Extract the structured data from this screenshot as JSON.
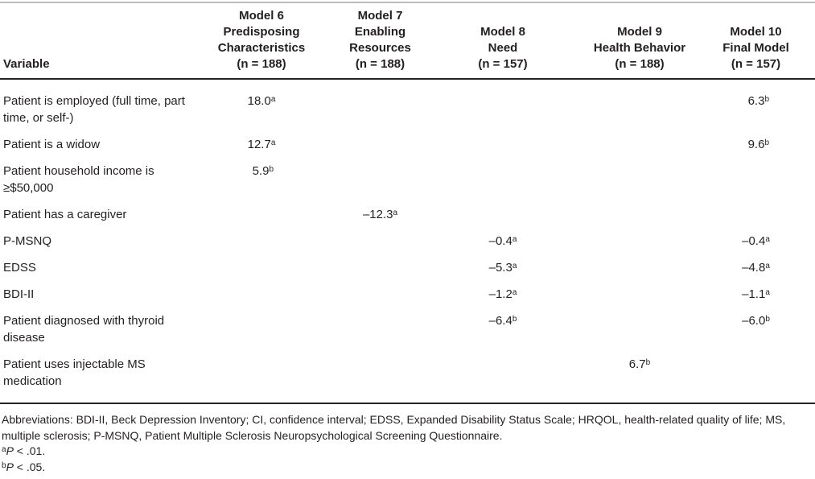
{
  "table": {
    "header": {
      "variable_label": "Variable",
      "models": [
        {
          "lines": [
            "Model 6",
            "Predisposing",
            "Characteristics",
            "(n = 188)"
          ]
        },
        {
          "lines": [
            "Model 7",
            "Enabling",
            "Resources",
            "(n = 188)"
          ]
        },
        {
          "lines": [
            "Model 8",
            "Need",
            "(n = 157)"
          ]
        },
        {
          "lines": [
            "Model 9",
            "Health Behavior",
            "(n = 188)"
          ]
        },
        {
          "lines": [
            "Model 10",
            "Final Model",
            "(n = 157)"
          ]
        }
      ]
    },
    "rows": [
      {
        "variable": "Patient is employed (full time, part time, or self-)",
        "m6": {
          "v": "18.0",
          "s": "a"
        },
        "m10": {
          "v": "6.3",
          "s": "b"
        }
      },
      {
        "variable": "Patient is a widow",
        "m6": {
          "v": "12.7",
          "s": "a"
        },
        "m10": {
          "v": "9.6",
          "s": "b"
        }
      },
      {
        "variable": "Patient household income is ≥$50,000",
        "m6": {
          "v": "5.9",
          "s": "b"
        }
      },
      {
        "variable": "Patient has a caregiver",
        "m7": {
          "v": "–12.3",
          "s": "a"
        }
      },
      {
        "variable": "P-MSNQ",
        "m8": {
          "v": "–0.4",
          "s": "a"
        },
        "m10": {
          "v": "–0.4",
          "s": "a"
        }
      },
      {
        "variable": "EDSS",
        "m8": {
          "v": "–5.3",
          "s": "a"
        },
        "m10": {
          "v": "–4.8",
          "s": "a"
        }
      },
      {
        "variable": "BDI-II",
        "m8": {
          "v": "–1.2",
          "s": "a"
        },
        "m10": {
          "v": "–1.1",
          "s": "a"
        }
      },
      {
        "variable": "Patient diagnosed with thyroid disease",
        "m8": {
          "v": "–6.4",
          "s": "b"
        },
        "m10": {
          "v": "–6.0",
          "s": "b"
        }
      },
      {
        "variable": "Patient uses injectable MS medication",
        "m9": {
          "v": "6.7",
          "s": "b"
        }
      }
    ]
  },
  "footnotes": {
    "abbreviations": "Abbreviations: BDI-II, Beck Depression Inventory; CI, confidence interval; EDSS, Expanded Disability Status Scale; HRQOL, health-related quality of life; MS, multiple sclerosis; P-MSNQ, Patient Multiple Sclerosis Neuropsychological Screening Questionnaire.",
    "note_a": {
      "sup": "a",
      "p": "P",
      "text": " < .01."
    },
    "note_b": {
      "sup": "b",
      "p": "P",
      "text": " < .05."
    }
  },
  "colors": {
    "text": "#231f20",
    "top_rule": "#bcbcbc",
    "heavy_rule": "#232323"
  }
}
